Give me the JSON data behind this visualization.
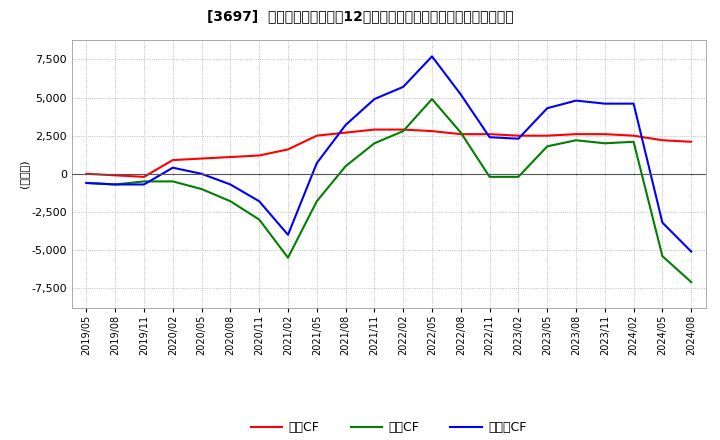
{
  "title": "[3697]  キャッシュフローの12か月移動合計の対前年同期増減額の推移",
  "ylabel": "(百万円)",
  "ylim": [
    -8800,
    8800
  ],
  "yticks": [
    -7500,
    -5000,
    -2500,
    0,
    2500,
    5000,
    7500
  ],
  "legend_labels": [
    "営業CF",
    "投資CF",
    "フリーCF"
  ],
  "line_colors": [
    "#ff0000",
    "#008000",
    "#0000ff"
  ],
  "x_labels": [
    "2019/05",
    "2019/08",
    "2019/11",
    "2020/02",
    "2020/05",
    "2020/08",
    "2020/11",
    "2021/02",
    "2021/05",
    "2021/08",
    "2021/11",
    "2022/02",
    "2022/05",
    "2022/08",
    "2022/11",
    "2023/02",
    "2023/05",
    "2023/08",
    "2023/11",
    "2024/02",
    "2024/05",
    "2024/08"
  ],
  "operating_cf": [
    0,
    -100,
    -200,
    900,
    1000,
    1100,
    1200,
    1600,
    2500,
    2700,
    2900,
    2900,
    2800,
    2600,
    2600,
    2500,
    2500,
    2600,
    2600,
    2500,
    2200,
    2100
  ],
  "investing_cf": [
    -600,
    -700,
    -500,
    -500,
    -1000,
    -1800,
    -3000,
    -5500,
    -1800,
    500,
    2000,
    2800,
    4900,
    2700,
    -200,
    -200,
    1800,
    2200,
    2000,
    2100,
    -5400,
    -7100
  ],
  "free_cf": [
    -600,
    -700,
    -700,
    400,
    0,
    -700,
    -1800,
    -4000,
    700,
    3200,
    4900,
    5700,
    7700,
    5200,
    2400,
    2300,
    4300,
    4800,
    4600,
    4600,
    -3200,
    -5100
  ],
  "background_color": "#ffffff",
  "grid_color": "#aaaaaa"
}
